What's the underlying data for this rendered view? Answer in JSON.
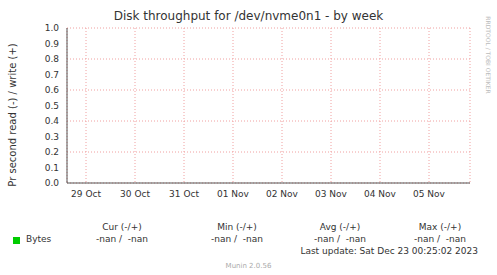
{
  "chart_data": {
    "type": "line",
    "title": "Disk throughput for /dev/nvme0n1 - by week",
    "y_label": "Pr second read (-) / write (+)",
    "categories": [
      "29 Oct",
      "30 Oct",
      "31 Oct",
      "01 Nov",
      "02 Nov",
      "03 Nov",
      "04 Nov",
      "05 Nov"
    ],
    "series": [
      {
        "name": "Bytes",
        "color": "#00cc00",
        "values": [
          null,
          null,
          null,
          null,
          null,
          null,
          null,
          null
        ]
      }
    ],
    "ylim": [
      0,
      1
    ],
    "yticks": [
      {
        "value": 0,
        "label": "0.0"
      },
      0.1,
      0.2,
      0.3,
      0.4,
      0.5,
      0.6,
      0.7,
      0.8,
      0.9,
      {
        "value": 1,
        "label": "1.0"
      }
    ],
    "grid": true,
    "legend_table": {
      "columns": [
        "Cur (-/+)",
        "Min (-/+)",
        "Avg (-/+)",
        "Max (-/+)"
      ],
      "rows": [
        {
          "name": "Bytes",
          "values": [
            "-nan /  -nan",
            "-nan /  -nan",
            "-nan /  -nan",
            "-nan /  -nan"
          ]
        }
      ]
    },
    "footer": "Last update: Sat Dec 23 00:25:02 2023",
    "credit": "Munin 2.0.56",
    "watermark": "RRDTOOL / TOBI OETIKER"
  }
}
